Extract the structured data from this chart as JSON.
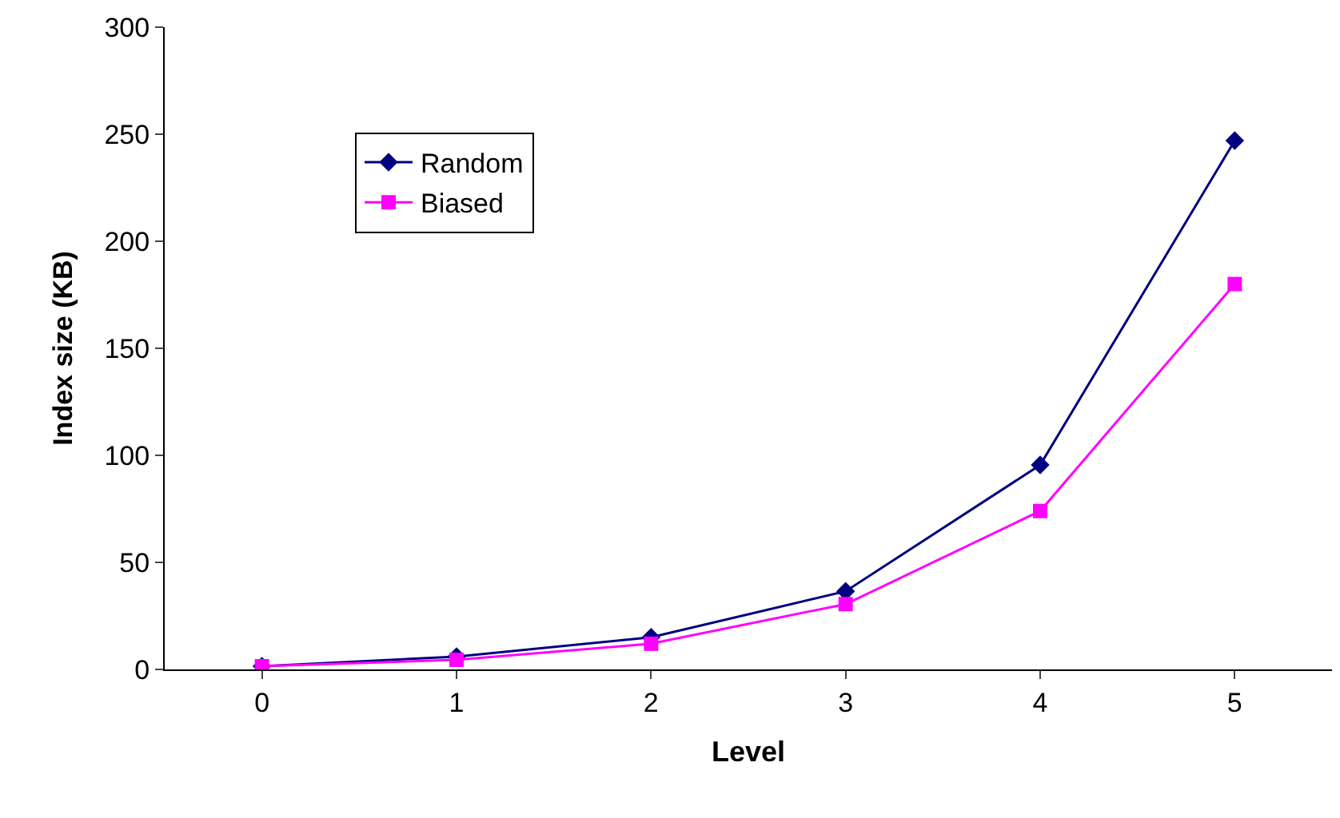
{
  "chart_data": {
    "type": "line",
    "xlabel": "Level",
    "ylabel": "Index size (KB)",
    "categories": [
      "0",
      "1",
      "2",
      "3",
      "4",
      "5"
    ],
    "series": [
      {
        "name": "Random",
        "color": "#000080",
        "marker": "diamond",
        "values": [
          1.5,
          6,
          15,
          36.5,
          95.5,
          247
        ]
      },
      {
        "name": "Biased",
        "color": "#ff00ff",
        "marker": "square",
        "values": [
          1.5,
          4.5,
          12,
          30.5,
          74,
          180
        ]
      }
    ],
    "ylim": [
      0,
      300
    ],
    "yticks": [
      0,
      50,
      100,
      150,
      200,
      250,
      300
    ],
    "grid": false,
    "legend": "top left",
    "line_style": "solid"
  }
}
